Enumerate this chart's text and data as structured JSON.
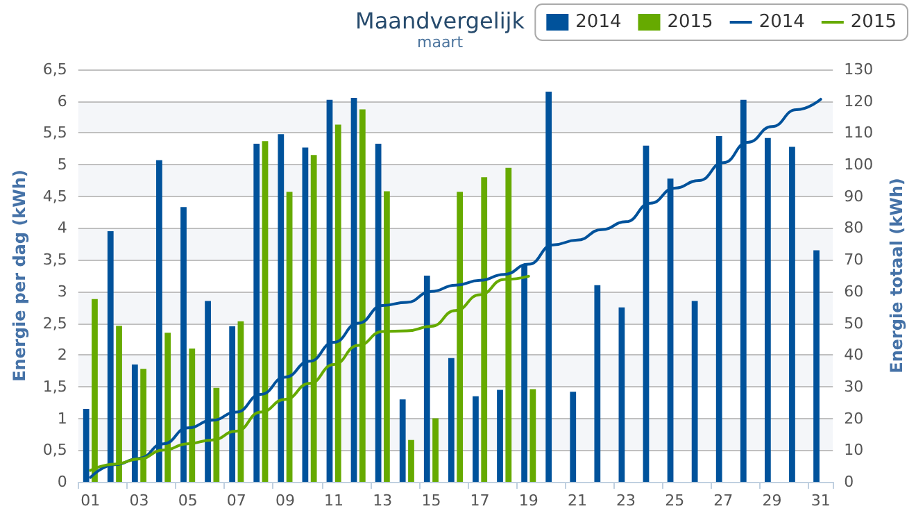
{
  "chart_data": {
    "type": "bar",
    "title": "Maandvergelijk",
    "subtitle": "maart",
    "ylabel": "Energie per dag (kWh)",
    "y2label": "Energie totaal (kWh)",
    "categories": [
      "01",
      null,
      "03",
      null,
      "05",
      null,
      "07",
      null,
      "09",
      null,
      "11",
      null,
      "13",
      null,
      "15",
      null,
      "17",
      null,
      "19",
      null,
      "21",
      null,
      "23",
      null,
      "25",
      null,
      "27",
      null,
      "29",
      null,
      "31"
    ],
    "series": [
      {
        "name": "2014",
        "color": "#00529b",
        "values": [
          1.15,
          3.95,
          1.85,
          5.07,
          4.33,
          2.85,
          2.45,
          5.33,
          5.48,
          5.27,
          6.02,
          6.05,
          5.33,
          1.3,
          3.25,
          1.95,
          1.35,
          1.45,
          3.42,
          6.15,
          1.42,
          3.1,
          2.75,
          5.3,
          4.78,
          2.85,
          5.45,
          6.02,
          5.42,
          5.28,
          3.65
        ]
      },
      {
        "name": "2015",
        "color": "#66aa00",
        "values": [
          2.88,
          2.46,
          1.78,
          2.35,
          2.1,
          1.48,
          2.53,
          5.37,
          4.57,
          5.15,
          5.63,
          5.87,
          4.58,
          0.66,
          1.0,
          4.57,
          4.8,
          4.95,
          1.46,
          null,
          null,
          null,
          null,
          null,
          null,
          null,
          null,
          null,
          null,
          null,
          null
        ]
      },
      {
        "name": "2014",
        "type": "line",
        "axis": "y2",
        "color": "#00529b",
        "values": [
          1.4,
          5.4,
          7.4,
          12,
          17,
          19.4,
          22,
          27.6,
          33,
          38,
          44,
          50,
          55.6,
          56.6,
          60,
          62,
          63.5,
          65.4,
          68.6,
          74.7,
          76.2,
          79.5,
          82,
          87.8,
          92.6,
          95,
          100.6,
          107,
          112,
          117.3,
          120.6
        ]
      },
      {
        "name": "2015",
        "type": "line",
        "axis": "y2",
        "color": "#66aa00",
        "values": [
          3.6,
          5.6,
          7.2,
          10,
          12,
          13.2,
          16,
          22,
          26,
          31,
          37,
          43,
          47.4,
          47.6,
          49,
          54,
          59,
          63.8,
          64.8,
          null,
          null,
          null,
          null,
          null,
          null,
          null,
          null,
          null,
          null,
          null,
          null
        ]
      }
    ],
    "ylim": [
      0,
      6.5
    ],
    "yticks": [
      0,
      {
        "value": 0.5,
        "label": "0,5"
      },
      1,
      {
        "value": 1.5,
        "label": "1,5"
      },
      2,
      {
        "value": 2.5,
        "label": "2,5"
      },
      3,
      {
        "value": 3.5,
        "label": "3,5"
      },
      4,
      {
        "value": 4.5,
        "label": "4,5"
      },
      5,
      {
        "value": 5.5,
        "label": "5,5"
      },
      6,
      {
        "value": 6.5,
        "label": "6,5"
      }
    ],
    "y2lim": [
      0,
      130
    ],
    "y2ticks": [
      0,
      10,
      20,
      30,
      40,
      50,
      60,
      70,
      80,
      90,
      100,
      110,
      120,
      130
    ],
    "grid": "y",
    "legend": "top right",
    "marker": "none",
    "line_style": "solid"
  }
}
